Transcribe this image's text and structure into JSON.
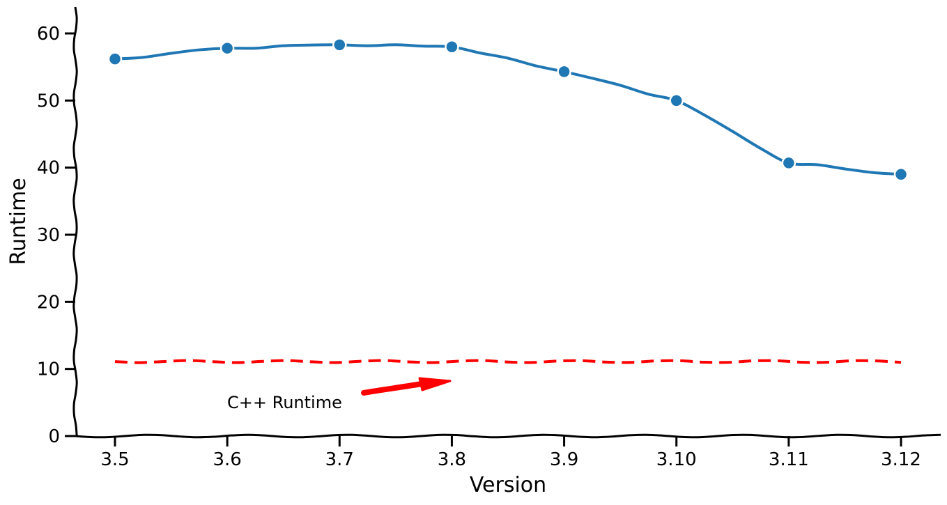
{
  "chart_data": {
    "type": "line",
    "title": "",
    "xlabel": "Version",
    "ylabel": "Runtime",
    "categories": [
      "3.5",
      "3.6",
      "3.7",
      "3.8",
      "3.9",
      "3.10",
      "3.11",
      "3.12"
    ],
    "ylim": [
      0,
      64
    ],
    "yticks": [
      0,
      10,
      20,
      30,
      40,
      50,
      60
    ],
    "series": [
      {
        "values": [
          56.2,
          57.8,
          58.3,
          58.0,
          54.3,
          50.0,
          40.7,
          39.0
        ],
        "color": "#1f77b4",
        "style": "solid",
        "markers": true
      }
    ],
    "reference_line": {
      "value": 11.1,
      "color": "#ff0000",
      "style": "dashed"
    },
    "annotation": {
      "text": "C++ Runtime",
      "arrow_color": "#ff0000"
    },
    "grid": false,
    "style": "xkcd"
  }
}
